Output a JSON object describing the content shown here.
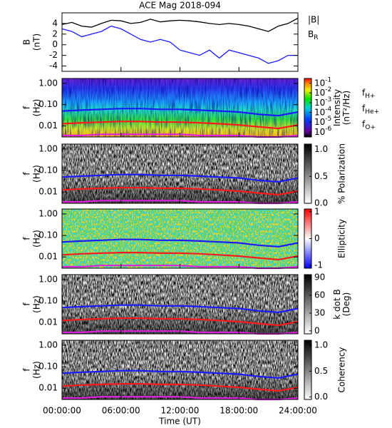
{
  "chart_data": [
    {
      "type": "line",
      "title": "ACE Mag 2018-094",
      "ylabel": [
        "B",
        "(nT)"
      ],
      "ylim": [
        -5,
        6
      ],
      "yticks": [
        -4,
        -2,
        0,
        2,
        4
      ],
      "xlim": [
        0,
        24
      ],
      "x": [
        0,
        1,
        2,
        3,
        4,
        5,
        6,
        7,
        8,
        9,
        10,
        11,
        12,
        13,
        14,
        15,
        16,
        17,
        18,
        19,
        20,
        21,
        22,
        23,
        24
      ],
      "series": [
        {
          "name": "|B|",
          "color": "#000000",
          "values": [
            3.8,
            4.2,
            3.5,
            3.3,
            4.0,
            4.6,
            4.5,
            4.0,
            4.2,
            4.8,
            4.3,
            4.5,
            4.6,
            4.5,
            4.3,
            4.0,
            3.8,
            4.0,
            3.8,
            3.5,
            3.0,
            2.5,
            3.5,
            4.0,
            5.0
          ]
        },
        {
          "name": "BR",
          "color": "#1a1aff",
          "values": [
            3,
            2.5,
            1.5,
            2,
            2.5,
            3.5,
            3,
            2,
            1,
            0.5,
            1,
            0.5,
            -1,
            -1.5,
            -2,
            -1,
            -2.5,
            -1,
            -1.5,
            -2,
            -2.5,
            -3.5,
            -3,
            -2,
            -2
          ]
        }
      ]
    },
    {
      "type": "spectrogram",
      "colormap": "rainbow",
      "ylabel": [
        "f",
        "(Hz)"
      ],
      "log": true,
      "ylim": [
        0.003,
        1.7
      ],
      "yticks": [
        {
          "value": 1,
          "label": "1.00"
        },
        {
          "value": 0.1,
          "label": "0.10"
        },
        0.01
      ],
      "xlim": [
        0,
        24
      ],
      "x": [
        0,
        2,
        4,
        6,
        8,
        10,
        12,
        14,
        16,
        18,
        20,
        22,
        24
      ],
      "colorbar": {
        "label": [
          "Intensity",
          "(nT²/Hz)"
        ],
        "log": true,
        "lim": [
          3e-07,
          0.3
        ],
        "ticks": [
          {
            "value": 0.1,
            "label": "10-1"
          },
          {
            "value": 0.01,
            "label": "10-2"
          },
          {
            "value": 0.001,
            "label": "10-3"
          },
          {
            "value": 0.0001,
            "label": "10-4"
          },
          {
            "value": 1e-05,
            "label": "10-5"
          },
          {
            "value": 1e-06,
            "label": "10-6"
          }
        ]
      },
      "series": [
        {
          "name": "fH+",
          "color": "#1a1aff",
          "values": [
            0.05,
            0.055,
            0.06,
            0.065,
            0.065,
            0.06,
            0.06,
            0.055,
            0.05,
            0.045,
            0.035,
            0.03,
            0.045
          ]
        },
        {
          "name": "fHe+",
          "color": "#ff1a1a",
          "values": [
            0.0125,
            0.014,
            0.015,
            0.016,
            0.016,
            0.015,
            0.015,
            0.014,
            0.0125,
            0.011,
            0.009,
            0.0075,
            0.011
          ]
        },
        {
          "name": "fO+",
          "color": "#e020e0",
          "values": [
            0.0035,
            0.0035,
            0.004,
            0.004,
            0.004,
            0.004,
            0.004,
            0.0035,
            0.0035,
            0.0035,
            0.003,
            0.003,
            0.0035
          ]
        }
      ]
    },
    {
      "type": "spectrogram",
      "colormap": "gray",
      "ylabel": [
        "f",
        "(Hz)"
      ],
      "log": true,
      "ylim": [
        0.003,
        1.7
      ],
      "yticks": [
        {
          "value": 1,
          "label": "1.00"
        },
        {
          "value": 0.1,
          "label": "0.10"
        },
        0.01
      ],
      "xlim": [
        0,
        24
      ],
      "x": [
        0,
        2,
        4,
        6,
        8,
        10,
        12,
        14,
        16,
        18,
        20,
        22,
        24
      ],
      "colorbar": {
        "label": [
          "% Polarization"
        ],
        "lim": [
          0,
          1.1
        ],
        "ticks": [
          {
            "value": 0,
            "label": "0.0"
          },
          {
            "value": 0.5,
            "label": "0.5"
          },
          {
            "value": 1,
            "label": "1.0"
          }
        ]
      },
      "series": [
        {
          "color": "#1a1aff",
          "values": [
            0.05,
            0.055,
            0.06,
            0.065,
            0.065,
            0.06,
            0.06,
            0.055,
            0.05,
            0.045,
            0.035,
            0.03,
            0.045
          ]
        },
        {
          "color": "#ff1a1a",
          "values": [
            0.0125,
            0.014,
            0.015,
            0.016,
            0.016,
            0.015,
            0.015,
            0.014,
            0.0125,
            0.011,
            0.009,
            0.0075,
            0.011
          ]
        },
        {
          "color": "#e020e0",
          "values": [
            0.0035,
            0.0035,
            0.004,
            0.004,
            0.004,
            0.004,
            0.004,
            0.0035,
            0.0035,
            0.0035,
            0.003,
            0.003,
            0.0035
          ]
        }
      ]
    },
    {
      "type": "spectrogram",
      "colormap": "bwr",
      "ylabel": [
        "f",
        "(Hz)"
      ],
      "log": true,
      "ylim": [
        0.003,
        1.7
      ],
      "yticks": [
        {
          "value": 1,
          "label": "1.00"
        },
        {
          "value": 0.1,
          "label": "0.10"
        },
        0.01
      ],
      "xlim": [
        0,
        24
      ],
      "x": [
        0,
        2,
        4,
        6,
        8,
        10,
        12,
        14,
        16,
        18,
        20,
        22,
        24
      ],
      "colorbar": {
        "label": [
          "Ellipticity"
        ],
        "lim": [
          -1.1,
          1.1
        ],
        "ticks": [
          -1,
          0,
          1
        ]
      },
      "series": [
        {
          "color": "#1a1aff",
          "values": [
            0.05,
            0.055,
            0.06,
            0.065,
            0.065,
            0.06,
            0.06,
            0.055,
            0.05,
            0.045,
            0.035,
            0.03,
            0.045
          ]
        },
        {
          "color": "#ff1a1a",
          "values": [
            0.0125,
            0.014,
            0.015,
            0.016,
            0.016,
            0.015,
            0.015,
            0.014,
            0.0125,
            0.011,
            0.009,
            0.0075,
            0.011
          ]
        },
        {
          "color": "#e020e0",
          "values": [
            0.0035,
            0.0035,
            0.004,
            0.004,
            0.004,
            0.004,
            0.004,
            0.0035,
            0.0035,
            0.0035,
            0.003,
            0.003,
            0.0035
          ]
        }
      ]
    },
    {
      "type": "spectrogram",
      "colormap": "gray",
      "ylabel": [
        "f",
        "(Hz)"
      ],
      "log": true,
      "ylim": [
        0.003,
        1.7
      ],
      "yticks": [
        {
          "value": 1,
          "label": "1.00"
        },
        {
          "value": 0.1,
          "label": "0.10"
        },
        0.01
      ],
      "xlim": [
        0,
        24
      ],
      "x": [
        0,
        2,
        4,
        6,
        8,
        10,
        12,
        14,
        16,
        18,
        20,
        22,
        24
      ],
      "colorbar": {
        "label": [
          "k dot B",
          "(Deg)"
        ],
        "lim": [
          -5,
          95
        ],
        "ticks": [
          0,
          30,
          60,
          90
        ]
      },
      "series": [
        {
          "color": "#1a1aff",
          "values": [
            0.05,
            0.055,
            0.06,
            0.065,
            0.065,
            0.06,
            0.06,
            0.055,
            0.05,
            0.045,
            0.035,
            0.03,
            0.045
          ]
        },
        {
          "color": "#ff1a1a",
          "values": [
            0.0125,
            0.014,
            0.015,
            0.016,
            0.016,
            0.015,
            0.015,
            0.014,
            0.0125,
            0.011,
            0.009,
            0.0075,
            0.011
          ]
        },
        {
          "color": "#e020e0",
          "values": [
            0.0035,
            0.0035,
            0.004,
            0.004,
            0.004,
            0.004,
            0.004,
            0.0035,
            0.0035,
            0.0035,
            0.003,
            0.003,
            0.0035
          ]
        }
      ]
    },
    {
      "type": "spectrogram",
      "colormap": "gray",
      "ylabel": [
        "f",
        "(Hz)"
      ],
      "log": true,
      "ylim": [
        0.003,
        1.7
      ],
      "yticks": [
        {
          "value": 1,
          "label": "1.00"
        },
        {
          "value": 0.1,
          "label": "0.10"
        },
        0.01
      ],
      "xlim": [
        0,
        24
      ],
      "x": [
        0,
        2,
        4,
        6,
        8,
        10,
        12,
        14,
        16,
        18,
        20,
        22,
        24
      ],
      "xlabel": "Time (UT)",
      "xticks": [
        {
          "value": 0,
          "label": "00:00:00"
        },
        {
          "value": 6,
          "label": "06:00:00"
        },
        {
          "value": 12,
          "label": "12:00:00"
        },
        {
          "value": 18,
          "label": "18:00:00"
        },
        {
          "value": 24,
          "label": "24:00:00"
        }
      ],
      "colorbar": {
        "label": [
          "Coherency"
        ],
        "lim": [
          -0.05,
          1.1
        ],
        "ticks": [
          {
            "value": 0,
            "label": "0.0"
          },
          {
            "value": 0.5,
            "label": "0.5"
          },
          {
            "value": 1,
            "label": "1.0"
          }
        ]
      },
      "series": [
        {
          "color": "#1a1aff",
          "values": [
            0.05,
            0.055,
            0.06,
            0.065,
            0.065,
            0.06,
            0.06,
            0.055,
            0.05,
            0.045,
            0.035,
            0.03,
            0.045
          ]
        },
        {
          "color": "#ff1a1a",
          "values": [
            0.0125,
            0.014,
            0.015,
            0.016,
            0.016,
            0.015,
            0.015,
            0.014,
            0.0125,
            0.011,
            0.009,
            0.0075,
            0.011
          ]
        },
        {
          "color": "#e020e0",
          "values": [
            0.0035,
            0.0035,
            0.004,
            0.004,
            0.004,
            0.004,
            0.004,
            0.0035,
            0.0035,
            0.0035,
            0.003,
            0.003,
            0.0035
          ]
        }
      ]
    }
  ]
}
